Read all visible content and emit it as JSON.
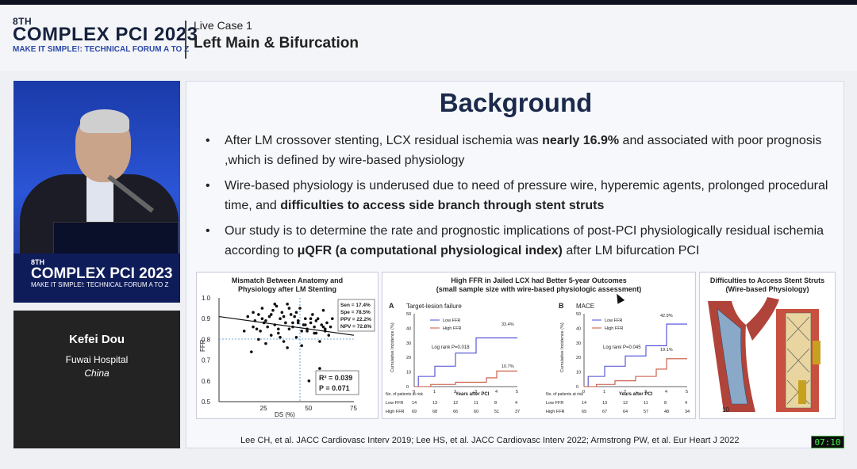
{
  "header": {
    "edition": "8TH",
    "brand": "COMPLEX PCI 2023",
    "tagline": "MAKE IT SIMPLE!: TECHNICAL FORUM A TO Z",
    "session_sub": "Live Case 1",
    "session_title": "Left Main & Bifurcation"
  },
  "video": {
    "podium_edition": "8TH",
    "podium_brand": "COMPLEX PCI 2023",
    "podium_tag": "MAKE IT SIMPLE!: TECHNICAL FORUM A TO Z"
  },
  "speaker": {
    "name": "Kefei Dou",
    "institution": "Fuwai Hospital",
    "country": "China"
  },
  "slide": {
    "title": "Background",
    "bullets": [
      {
        "pre": "After LM crossover stenting, LCX residual ischemia  was ",
        "bold": "nearly 16.9%",
        "post": " and associated with poor prognosis  ,which is defined  by wire-based physiology"
      },
      {
        "pre": "Wire-based physiology is underused due to need of pressure wire, hyperemic agents, prolonged procedural time, and ",
        "bold": "difficulties to access side branch through stent struts",
        "post": ""
      },
      {
        "pre": "Our study is to determine the rate and prognostic implications of post-PCI physiologically residual ischemia according to ",
        "bold": "μQFR (a computational physiological index)",
        "post": " after LM bifurcation PCI"
      }
    ],
    "refs": "Lee CH, et al. JACC Cardiovasc Interv 2019; Lee HS, et al. JACC Cardiovasc Interv 2022; Armstrong PW, et al. Eur Heart J 2022"
  },
  "panels": {
    "scatter": {
      "title": "Mismatch Between Anatomy and Physiology after LM Stenting",
      "ylabel": "FFR",
      "xlabel": "DS (%)",
      "stats": [
        "Sen = 17.4%",
        "Spe = 78.5%",
        "PPV = 22.2%",
        "NPV = 72.8%"
      ],
      "r2": "R² = 0.039",
      "p": "P = 0.071"
    },
    "km": {
      "title": "High FFR in Jailed LCX had Better 5-year Outcomes",
      "subtitle": "(small sample size with wire-based physiologic assessment)",
      "a_label": "A",
      "a_title": "Target-lesion failure",
      "a_logrank": "Log rank P=0.018",
      "b_label": "B",
      "b_title": "MACE",
      "b_logrank": "Log rank P=0.045",
      "legend_low": "Low FFR",
      "legend_high": "High FFR",
      "ylabel": "Cumulative Incidence (%)",
      "xlabel": "Years after PCI",
      "risk_header": "No. of patients at risk",
      "a_low_end": "33.4%",
      "a_high_end": "10.7%",
      "b_low_end": "42.9%",
      "b_high_end": "19.1%",
      "a_risk_low": [
        "14",
        "13",
        "12",
        "11",
        "8",
        "4"
      ],
      "a_risk_high": [
        "69",
        "68",
        "66",
        "60",
        "51",
        "37"
      ],
      "b_risk_low": [
        "14",
        "13",
        "12",
        "11",
        "8",
        "4"
      ],
      "b_risk_high": [
        "69",
        "67",
        "64",
        "57",
        "48",
        "34"
      ]
    },
    "strut": {
      "title": "Difficulties to Access Stent Struts",
      "subtitle": "(Wire-based Physiology)",
      "label": "10"
    }
  },
  "chart_data": [
    {
      "type": "scatter",
      "title": "Mismatch Between Anatomy and Physiology after LM Stenting",
      "xlabel": "DS (%)",
      "ylabel": "FFR",
      "xlim": [
        0,
        75
      ],
      "ylim": [
        0.5,
        1.0
      ],
      "xticks": [
        "25",
        "50",
        "75"
      ],
      "yticks": [
        "0.5",
        "0.6",
        "0.7",
        "0.8",
        "0.9",
        "1.0"
      ],
      "x": [
        14,
        16,
        18,
        19,
        20,
        21,
        22,
        23,
        24,
        25,
        26,
        27,
        28,
        29,
        30,
        31,
        32,
        33,
        34,
        35,
        36,
        37,
        38,
        39,
        40,
        41,
        42,
        43,
        44,
        45,
        46,
        47,
        48,
        49,
        50,
        51,
        52,
        53,
        54,
        55,
        56,
        57,
        58,
        59,
        60,
        61,
        62,
        63,
        19,
        22,
        26,
        31,
        33,
        36,
        38,
        41,
        43,
        46,
        48,
        51,
        53,
        56,
        58,
        24,
        29,
        34,
        39,
        44,
        49,
        54,
        59
      ],
      "y": [
        0.84,
        0.91,
        0.74,
        0.86,
        0.89,
        0.85,
        0.92,
        0.84,
        0.95,
        0.88,
        0.78,
        0.86,
        0.91,
        0.82,
        0.94,
        0.87,
        0.96,
        0.83,
        0.9,
        0.93,
        0.79,
        0.88,
        0.97,
        0.85,
        0.92,
        0.86,
        0.91,
        0.81,
        0.89,
        0.95,
        0.77,
        0.87,
        0.9,
        0.84,
        0.6,
        0.88,
        0.92,
        0.86,
        0.83,
        0.9,
        0.79,
        0.87,
        0.94,
        0.85,
        0.88,
        0.82,
        0.86,
        0.9,
        0.93,
        0.8,
        0.89,
        0.97,
        0.85,
        0.91,
        0.76,
        0.88,
        0.93,
        0.84,
        0.87,
        0.9,
        0.83,
        0.66,
        0.86,
        0.9,
        0.92,
        0.81,
        0.95,
        0.88,
        0.85,
        0.89,
        0.84
      ],
      "trend": [
        [
          0,
          0.91
        ],
        [
          75,
          0.82
        ]
      ]
    },
    {
      "type": "line",
      "title": "Target-lesion failure",
      "xlabel": "Years after PCI",
      "ylabel": "Cumulative Incidence (%)",
      "xlim": [
        0,
        5
      ],
      "ylim": [
        0,
        50
      ],
      "series": [
        {
          "name": "Low FFR",
          "x": [
            0,
            0.2,
            0.2,
            1,
            1,
            2,
            2,
            3,
            3,
            5
          ],
          "y": [
            0,
            0,
            7,
            7,
            14,
            14,
            23,
            23,
            33.4,
            33.4
          ]
        },
        {
          "name": "High FFR",
          "x": [
            0,
            0.8,
            0.8,
            2,
            2,
            3.5,
            3.5,
            4,
            4,
            5
          ],
          "y": [
            0,
            0,
            1.5,
            1.5,
            3,
            3,
            6,
            6,
            10.7,
            10.7
          ]
        }
      ]
    },
    {
      "type": "line",
      "title": "MACE",
      "xlabel": "Years after PCI",
      "ylabel": "Cumulative Incidence (%)",
      "xlim": [
        0,
        5
      ],
      "ylim": [
        0,
        50
      ],
      "series": [
        {
          "name": "Low FFR",
          "x": [
            0,
            0.2,
            0.2,
            1,
            1,
            2,
            2,
            3,
            3,
            4,
            4,
            5
          ],
          "y": [
            0,
            0,
            7,
            7,
            14,
            14,
            21,
            21,
            28,
            28,
            42.9,
            42.9
          ]
        },
        {
          "name": "High FFR",
          "x": [
            0,
            0.6,
            0.6,
            1.5,
            1.5,
            2.5,
            2.5,
            3.5,
            3.5,
            4,
            4,
            5
          ],
          "y": [
            0,
            0,
            1.5,
            1.5,
            4,
            4,
            7,
            7,
            12,
            12,
            19.1,
            19.1
          ]
        }
      ]
    }
  ],
  "overlay": {
    "timer": "07:10"
  }
}
